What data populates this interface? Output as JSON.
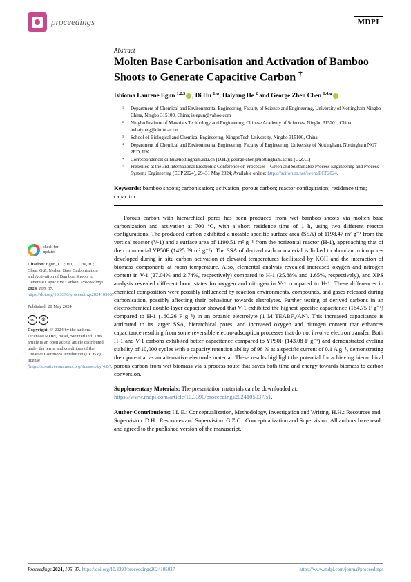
{
  "header": {
    "journal": "proceedings",
    "publisher": "MDPI"
  },
  "article": {
    "type": "Abstract",
    "title": "Molten Base Carbonisation and Activation of Bamboo Shoots to Generate Capacitive Carbon †",
    "authors_html": "Ishioma Laurene Egun 1,2,3, Di Hu 1,*, Haiyong He 2 and George Zhen Chen 1,4,*"
  },
  "affiliations": [
    {
      "n": "1",
      "t": "Department of Chemical and Environmental Engineering, Faculty of Science and Engineering, University of Nottingham Ningbo China, Ningbo 315100, China; isiegun@yahoo.com"
    },
    {
      "n": "2",
      "t": "Ningbo Institute of Materials Technology and Engineering, Chinese Academy of Sciences, Ningbo 315201, China; hehaiyong@nimte.ac.cn"
    },
    {
      "n": "3",
      "t": "School of Biological and Chemical Engineering, NingboTech University, Ningbo 315100, China"
    },
    {
      "n": "4",
      "t": "Department of Chemical and Environmental Engineering, Faculty of Engineering, University of Nottingham, Nottingham NG7 2RD, UK"
    },
    {
      "n": "*",
      "t": "Correspondence: di.hu@nottingham.edu.cn (D.H.); george.chen@nottingham.ac.uk (G.Z.C.)"
    },
    {
      "n": "†",
      "t": "Presented at the 3rd International Electronic Conference on Processes—Green and Sustainable Process Engineering and Process Systems Engineering (ECP 2024), 29–31 May 2024; Available online:"
    }
  ],
  "conf_link": "https://sciforum.net/event/ECP2024",
  "keywords": "bamboo shoots; carbonisation; activation; porous carbon; reactor configuration; residence time; capacitor",
  "abstract": "Porous carbon with hierarchical pores has been produced from wet bamboo shoots via molten base carbonization and activation at 700 °C, with a short residence time of 1 h, using two different reactor configurations. The produced carbon exhibited a notable specific surface area (SSA) of 1198.47 m² g⁻¹ from the vertical reactor (V-1) and a surface area of 1190.51 m² g⁻¹ from the horizontal reactor (H-1), approaching that of the commercial YP50F (1425.89 m² g⁻¹). The SSA of derived carbon material is linked to abundant micropores developed during in situ carbon activation at elevated temperatures facilitated by KOH and the interaction of biomass components at room temperature. Also, elemental analysis revealed increased oxygen and nitrogen content in V-1 (27.04% and 2.74%, respectively) compared to H-1 (25.88% and 1.65%, respectively), and XPS analysis revealed different bond states for oxygen and nitrogen in V-1 compared to H-1. These differences in chemical composition were possibly influenced by reaction environments, compounds, and gases released during carbonisation, possibly affecting their behaviour towards eletrolytes. Further testing of derived carbons in an electrochemical double-layer capacitor showed that V-1 exhibited the highest specific capacitance (164.75 F g⁻¹) compared to H-1 (160.26 F g⁻¹) in an organic electrolyte (1 M TEABF₄/AN). This increased capacitance is attributed to its larger SSA, hierarchical pores, and increased oxygen and nitrogen content that enhances capacitance resulting from some reversible electro-adsorption processes that do not involve electron transfer. Both H-1 and V-1 carbons exhibited better capacitance compared to YP50F (143.08 F g⁻¹) and demonstrated cycling stability of 10,000 cycles with a capacity retention ability of 98 % at a specific current of 0.1 A g⁻¹, demonstrating their potential as an alternative electrode material. These results highlight the potential for achieving hierarchical porous carbon from wet biomass via a process route that saves both time and energy towards biomass to carbon conversion.",
  "supplementary": {
    "label": "Supplementary Materials:",
    "text": "The presentation materials can be downloaded at:",
    "link": "https://www.mdpi.com/article/10.3390/proceedings2024105037/s1"
  },
  "contributions": {
    "label": "Author Contributions:",
    "text": "I.L.E.: Conceptualization, Methodology, Investigation and Writing. H.H.: Resources and Supervision. D.H.: Resources and Supervision. G.Z.C.: Conceptualization and Supervision. All authors have read and agreed to the published version of the manuscript."
  },
  "sidebar": {
    "check": "check for\nupdates",
    "citation": "Citation: Egun, I.L.; Hu, D.; He, H.; Chen, G.Z. Molten Base Carbonisation and Activation of Bamboo Shoots to Generate Capacitive Carbon. Proceedings 2024, 105, 37. https://doi.org/10.3390/proceedings2024105037",
    "published": "Published: 28 May 2024",
    "copyright": "Copyright: © 2024 by the authors. Licensee MDPI, Basel, Switzerland. This article is an open access article distributed under the terms and conditions of the Creative Commons Attribution (CC BY) license (https://creativecommons.org/licenses/by/4.0/)."
  },
  "footer": {
    "left": "Proceedings 2024, 105, 37. https://doi.org/10.3390/proceedings2024105037",
    "right": "https://www.mdpi.com/journal/proceedings"
  }
}
